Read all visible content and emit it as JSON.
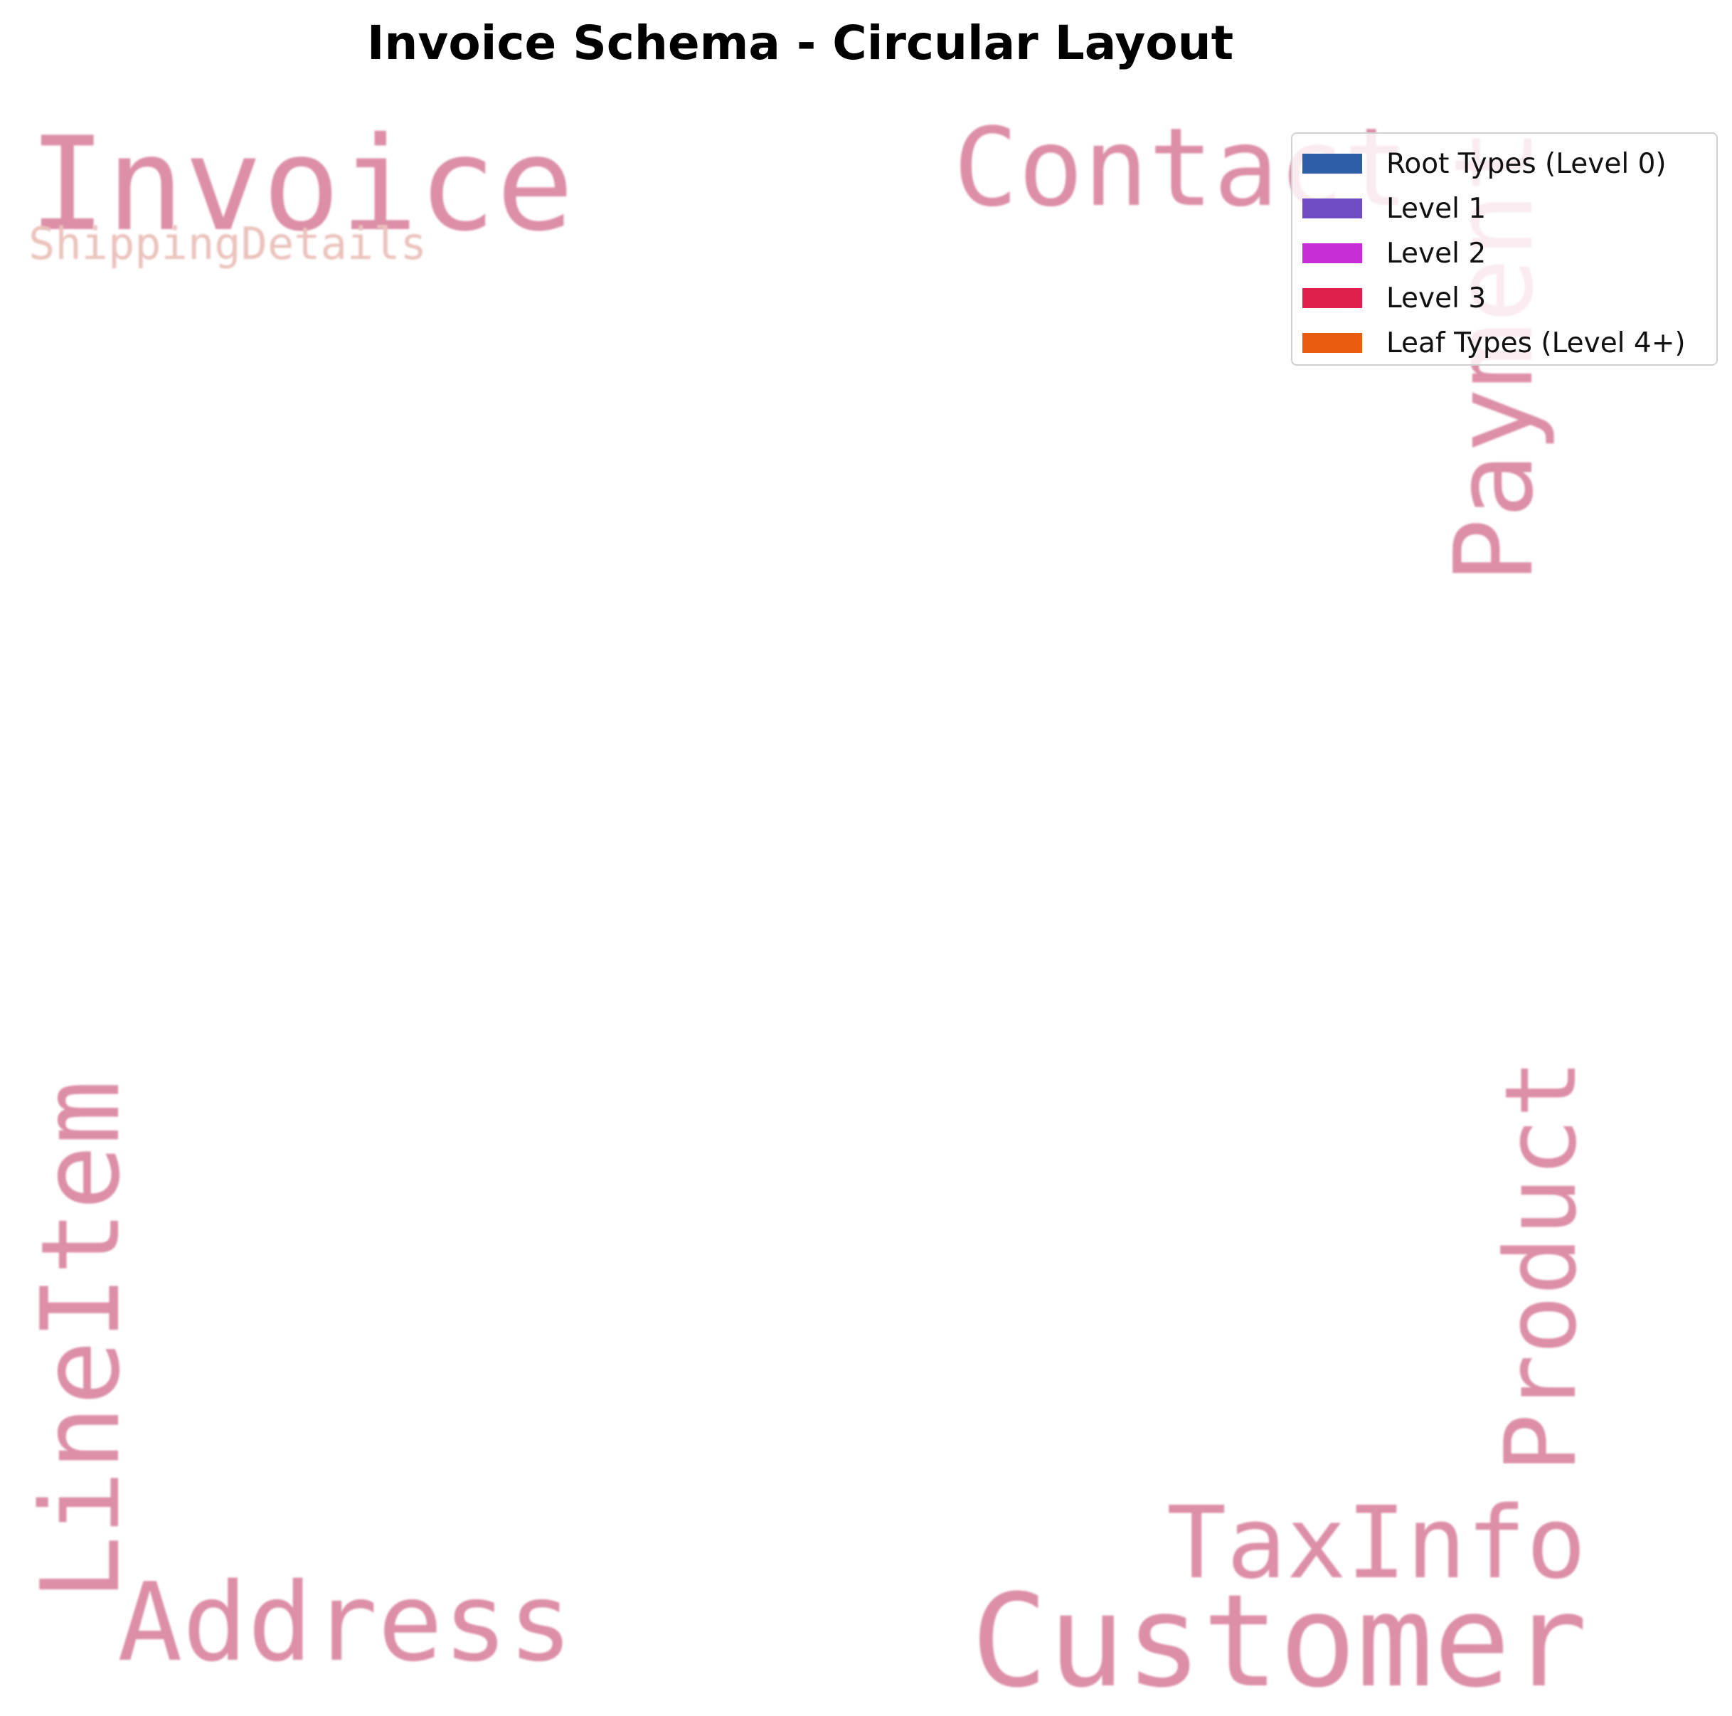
{
  "diagram": {
    "title": "Invoice Schema - Circular Layout",
    "word_color": "#dc8fa6",
    "words": [
      {
        "text": "Invoice",
        "color": "#dc8fa6"
      },
      {
        "text": "ShippingDetails",
        "color": "#ebc2bc"
      },
      {
        "text": "Contact",
        "color": "#dc8fa6"
      },
      {
        "text": "Payment",
        "color": "#dc8fa6"
      },
      {
        "text": "LineItem",
        "color": "#dc8fa6"
      },
      {
        "text": "Product",
        "color": "#dc8fa6"
      },
      {
        "text": "TaxInfo",
        "color": "#dc8fa6"
      },
      {
        "text": "Address",
        "color": "#dc8fa6"
      },
      {
        "text": "Customer",
        "color": "#dc8fa6"
      }
    ]
  },
  "legend": {
    "items": [
      {
        "label": "Root Types (Level 0)",
        "color": "#2e5ea8"
      },
      {
        "label": "Level 1",
        "color": "#6f4cc4"
      },
      {
        "label": "Level 2",
        "color": "#c72ed6"
      },
      {
        "label": "Level 3",
        "color": "#e0204c"
      },
      {
        "label": "Leaf Types (Level 4+)",
        "color": "#ea5d10"
      }
    ]
  }
}
